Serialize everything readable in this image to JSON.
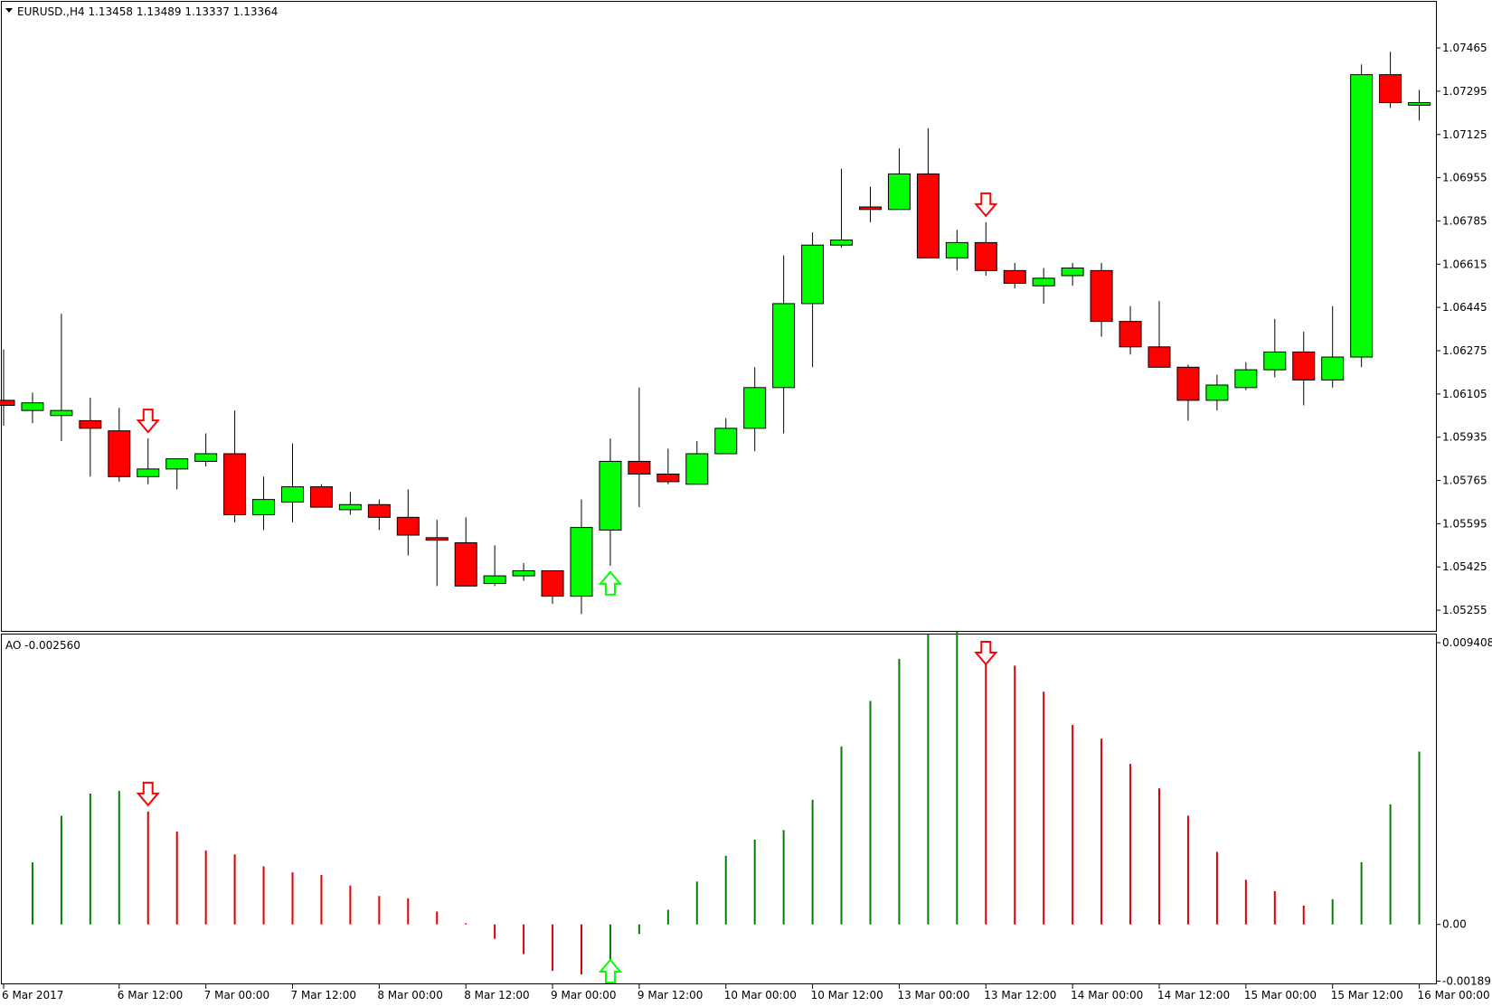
{
  "header": {
    "symbol_line": "EURUSD.,H4  1.13458 1.13489 1.13337 1.13364",
    "indicator_line": "AO -0.002560"
  },
  "colors": {
    "bull": "#00ff00",
    "bear": "#ff0000",
    "ao_up": "#008000",
    "ao_down": "#dd0000",
    "grid_line": "#000000",
    "signal_down": "#ff0000",
    "signal_up": "#00ff00"
  },
  "icons": {
    "menu": "triangle-down-icon",
    "sell_signal": "arrow-down-outline-icon",
    "buy_signal": "arrow-up-outline-icon"
  },
  "chart_data": [
    {
      "type": "candlestick",
      "name": "price",
      "ylim": [
        1.0517,
        1.0765
      ],
      "y_ticks": [
        "1.07465",
        "1.07295",
        "1.07125",
        "1.06955",
        "1.06785",
        "1.06615",
        "1.06445",
        "1.06275",
        "1.06105",
        "1.05935",
        "1.05765",
        "1.05595",
        "1.05425",
        "1.05255"
      ],
      "candles": [
        [
          1.0608,
          1.0628,
          1.0598,
          1.0606
        ],
        [
          1.0604,
          1.0611,
          1.0599,
          1.0607
        ],
        [
          1.0602,
          1.0642,
          1.0592,
          1.0604
        ],
        [
          1.06,
          1.0609,
          1.0578,
          1.0597
        ],
        [
          1.0596,
          1.0605,
          1.0576,
          1.0578
        ],
        [
          1.0578,
          1.0593,
          1.0575,
          1.0581
        ],
        [
          1.0581,
          1.0585,
          1.0573,
          1.0585
        ],
        [
          1.0584,
          1.0595,
          1.0582,
          1.0587
        ],
        [
          1.0587,
          1.0604,
          1.056,
          1.0563
        ],
        [
          1.0563,
          1.0578,
          1.0557,
          1.0569
        ],
        [
          1.0568,
          1.0591,
          1.056,
          1.0574
        ],
        [
          1.0574,
          1.0575,
          1.0566,
          1.0566
        ],
        [
          1.0565,
          1.0572,
          1.0563,
          1.0567
        ],
        [
          1.0567,
          1.0569,
          1.0557,
          1.0562
        ],
        [
          1.0562,
          1.0573,
          1.0547,
          1.0555
        ],
        [
          1.0554,
          1.0561,
          1.0535,
          1.0553
        ],
        [
          1.0552,
          1.0562,
          1.0537,
          1.0535
        ],
        [
          1.0536,
          1.0551,
          1.0535,
          1.0539
        ],
        [
          1.0539,
          1.0544,
          1.0537,
          1.0541
        ],
        [
          1.0541,
          1.0541,
          1.0528,
          1.0531
        ],
        [
          1.0531,
          1.0569,
          1.0524,
          1.0558
        ],
        [
          1.0557,
          1.0593,
          1.0543,
          1.0584
        ],
        [
          1.0584,
          1.0613,
          1.0566,
          1.0579
        ],
        [
          1.0579,
          1.0589,
          1.0575,
          1.0576
        ],
        [
          1.0575,
          1.0592,
          1.0576,
          1.0587
        ],
        [
          1.0587,
          1.0601,
          1.0588,
          1.0597
        ],
        [
          1.0597,
          1.0621,
          1.0588,
          1.0613
        ],
        [
          1.0613,
          1.0665,
          1.0595,
          1.0646
        ],
        [
          1.0646,
          1.0674,
          1.0621,
          1.0669
        ],
        [
          1.0669,
          1.0699,
          1.0668,
          1.0671
        ],
        [
          1.0684,
          1.0692,
          1.0678,
          1.0683
        ],
        [
          1.0683,
          1.0707,
          1.0683,
          1.0697
        ],
        [
          1.0697,
          1.0715,
          1.0664,
          1.0664
        ],
        [
          1.0664,
          1.0675,
          1.0659,
          1.067
        ],
        [
          1.067,
          1.0678,
          1.0657,
          1.0659
        ],
        [
          1.0659,
          1.0662,
          1.0652,
          1.0654
        ],
        [
          1.0653,
          1.066,
          1.0646,
          1.0656
        ],
        [
          1.0657,
          1.0662,
          1.0653,
          1.066
        ],
        [
          1.0659,
          1.0662,
          1.0633,
          1.0639
        ],
        [
          1.0639,
          1.0645,
          1.0626,
          1.0629
        ],
        [
          1.0629,
          1.0647,
          1.0621,
          1.0621
        ],
        [
          1.0621,
          1.0622,
          1.06,
          1.0608
        ],
        [
          1.0608,
          1.0618,
          1.0604,
          1.0614
        ],
        [
          1.0613,
          1.0623,
          1.0612,
          1.062
        ],
        [
          1.062,
          1.064,
          1.0617,
          1.0627
        ],
        [
          1.0627,
          1.0635,
          1.0606,
          1.0616
        ],
        [
          1.0616,
          1.0645,
          1.0613,
          1.0625
        ],
        [
          1.0625,
          1.074,
          1.0621,
          1.0736
        ],
        [
          1.0736,
          1.0745,
          1.0723,
          1.0725
        ],
        [
          1.0724,
          1.073,
          1.0718,
          1.0725
        ]
      ],
      "signals": [
        {
          "bar": 5,
          "direction": "down"
        },
        {
          "bar": 21,
          "direction": "up"
        },
        {
          "bar": 34,
          "direction": "down"
        }
      ]
    },
    {
      "type": "bar",
      "name": "AO",
      "ylim": [
        -0.002,
        0.00968
      ],
      "y_ticks": [
        "0.009408",
        "0.00",
        "-0.001893"
      ],
      "values": [
        null,
        0.00207,
        0.00363,
        0.00437,
        0.00446,
        0.00377,
        0.0031,
        0.00247,
        0.00234,
        0.00194,
        0.00174,
        0.00165,
        0.0013,
        0.00095,
        0.00087,
        0.00043,
        4e-05,
        -0.00048,
        -0.00099,
        -0.00155,
        -0.00167,
        -0.00158,
        -0.00032,
        0.00049,
        0.00143,
        0.00229,
        0.00283,
        0.00315,
        0.00416,
        0.00594,
        0.00746,
        0.00887,
        0.00968,
        0.00978,
        0.00938,
        0.00864,
        0.00777,
        0.00666,
        0.0062,
        0.00536,
        0.00454,
        0.00363,
        0.00242,
        0.00149,
        0.00111,
        0.00063,
        0.00084,
        0.00208,
        0.00401,
        0.00577
      ],
      "signals": [
        {
          "bar": 5,
          "direction": "down"
        },
        {
          "bar": 21,
          "direction": "up"
        },
        {
          "bar": 34,
          "direction": "down"
        }
      ]
    }
  ],
  "x_labels": [
    {
      "bar": 0,
      "text": "6 Mar 2017"
    },
    {
      "bar": 4,
      "text": "6 Mar 12:00"
    },
    {
      "bar": 7,
      "text": "7 Mar 00:00"
    },
    {
      "bar": 10,
      "text": "7 Mar 12:00"
    },
    {
      "bar": 13,
      "text": "8 Mar 00:00"
    },
    {
      "bar": 16,
      "text": "8 Mar 12:00"
    },
    {
      "bar": 19,
      "text": "9 Mar 00:00"
    },
    {
      "bar": 22,
      "text": "9 Mar 12:00"
    },
    {
      "bar": 25,
      "text": "10 Mar 00:00"
    },
    {
      "bar": 28,
      "text": "10 Mar 12:00"
    },
    {
      "bar": 31,
      "text": "13 Mar 00:00"
    },
    {
      "bar": 34,
      "text": "13 Mar 12:00"
    },
    {
      "bar": 37,
      "text": "14 Mar 00:00"
    },
    {
      "bar": 40,
      "text": "14 Mar 12:00"
    },
    {
      "bar": 43,
      "text": "15 Mar 00:00"
    },
    {
      "bar": 46,
      "text": "15 Mar 12:00"
    },
    {
      "bar": 49,
      "text": "16 Mar 00:00"
    }
  ]
}
